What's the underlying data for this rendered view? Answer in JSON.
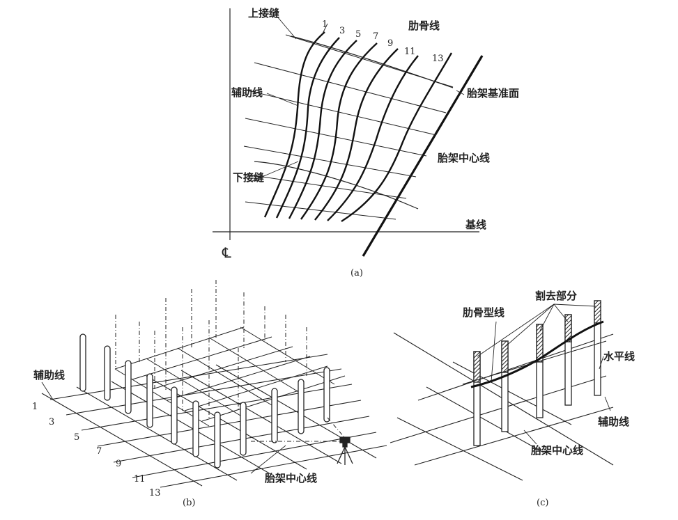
{
  "figure_a": {
    "caption": "(a)",
    "labels": {
      "upper_seam": "上接缝",
      "rib_lines": "肋骨线",
      "jig_datum_plane": "胎架基准面",
      "auxiliary_lines": "辅助线",
      "jig_center_line": "胎架中心线",
      "lower_seam": "下接缝",
      "base_line": "基线",
      "centerline_symbol": "℄"
    },
    "rib_numbers": [
      "1",
      "3",
      "5",
      "7",
      "9",
      "11",
      "13"
    ]
  },
  "figure_b": {
    "caption": "(b)",
    "labels": {
      "auxiliary_lines": "辅助线",
      "jig_center_line": "胎架中心线"
    },
    "rib_numbers": [
      "1",
      "3",
      "5",
      "7",
      "9",
      "11",
      "13"
    ]
  },
  "figure_c": {
    "caption": "(c)",
    "labels": {
      "cut_off_part": "割去部分",
      "rib_profile_line": "肋骨型线",
      "horizontal_line": "水平线",
      "auxiliary_lines": "辅助线",
      "jig_center_line": "胎架中心线"
    }
  }
}
